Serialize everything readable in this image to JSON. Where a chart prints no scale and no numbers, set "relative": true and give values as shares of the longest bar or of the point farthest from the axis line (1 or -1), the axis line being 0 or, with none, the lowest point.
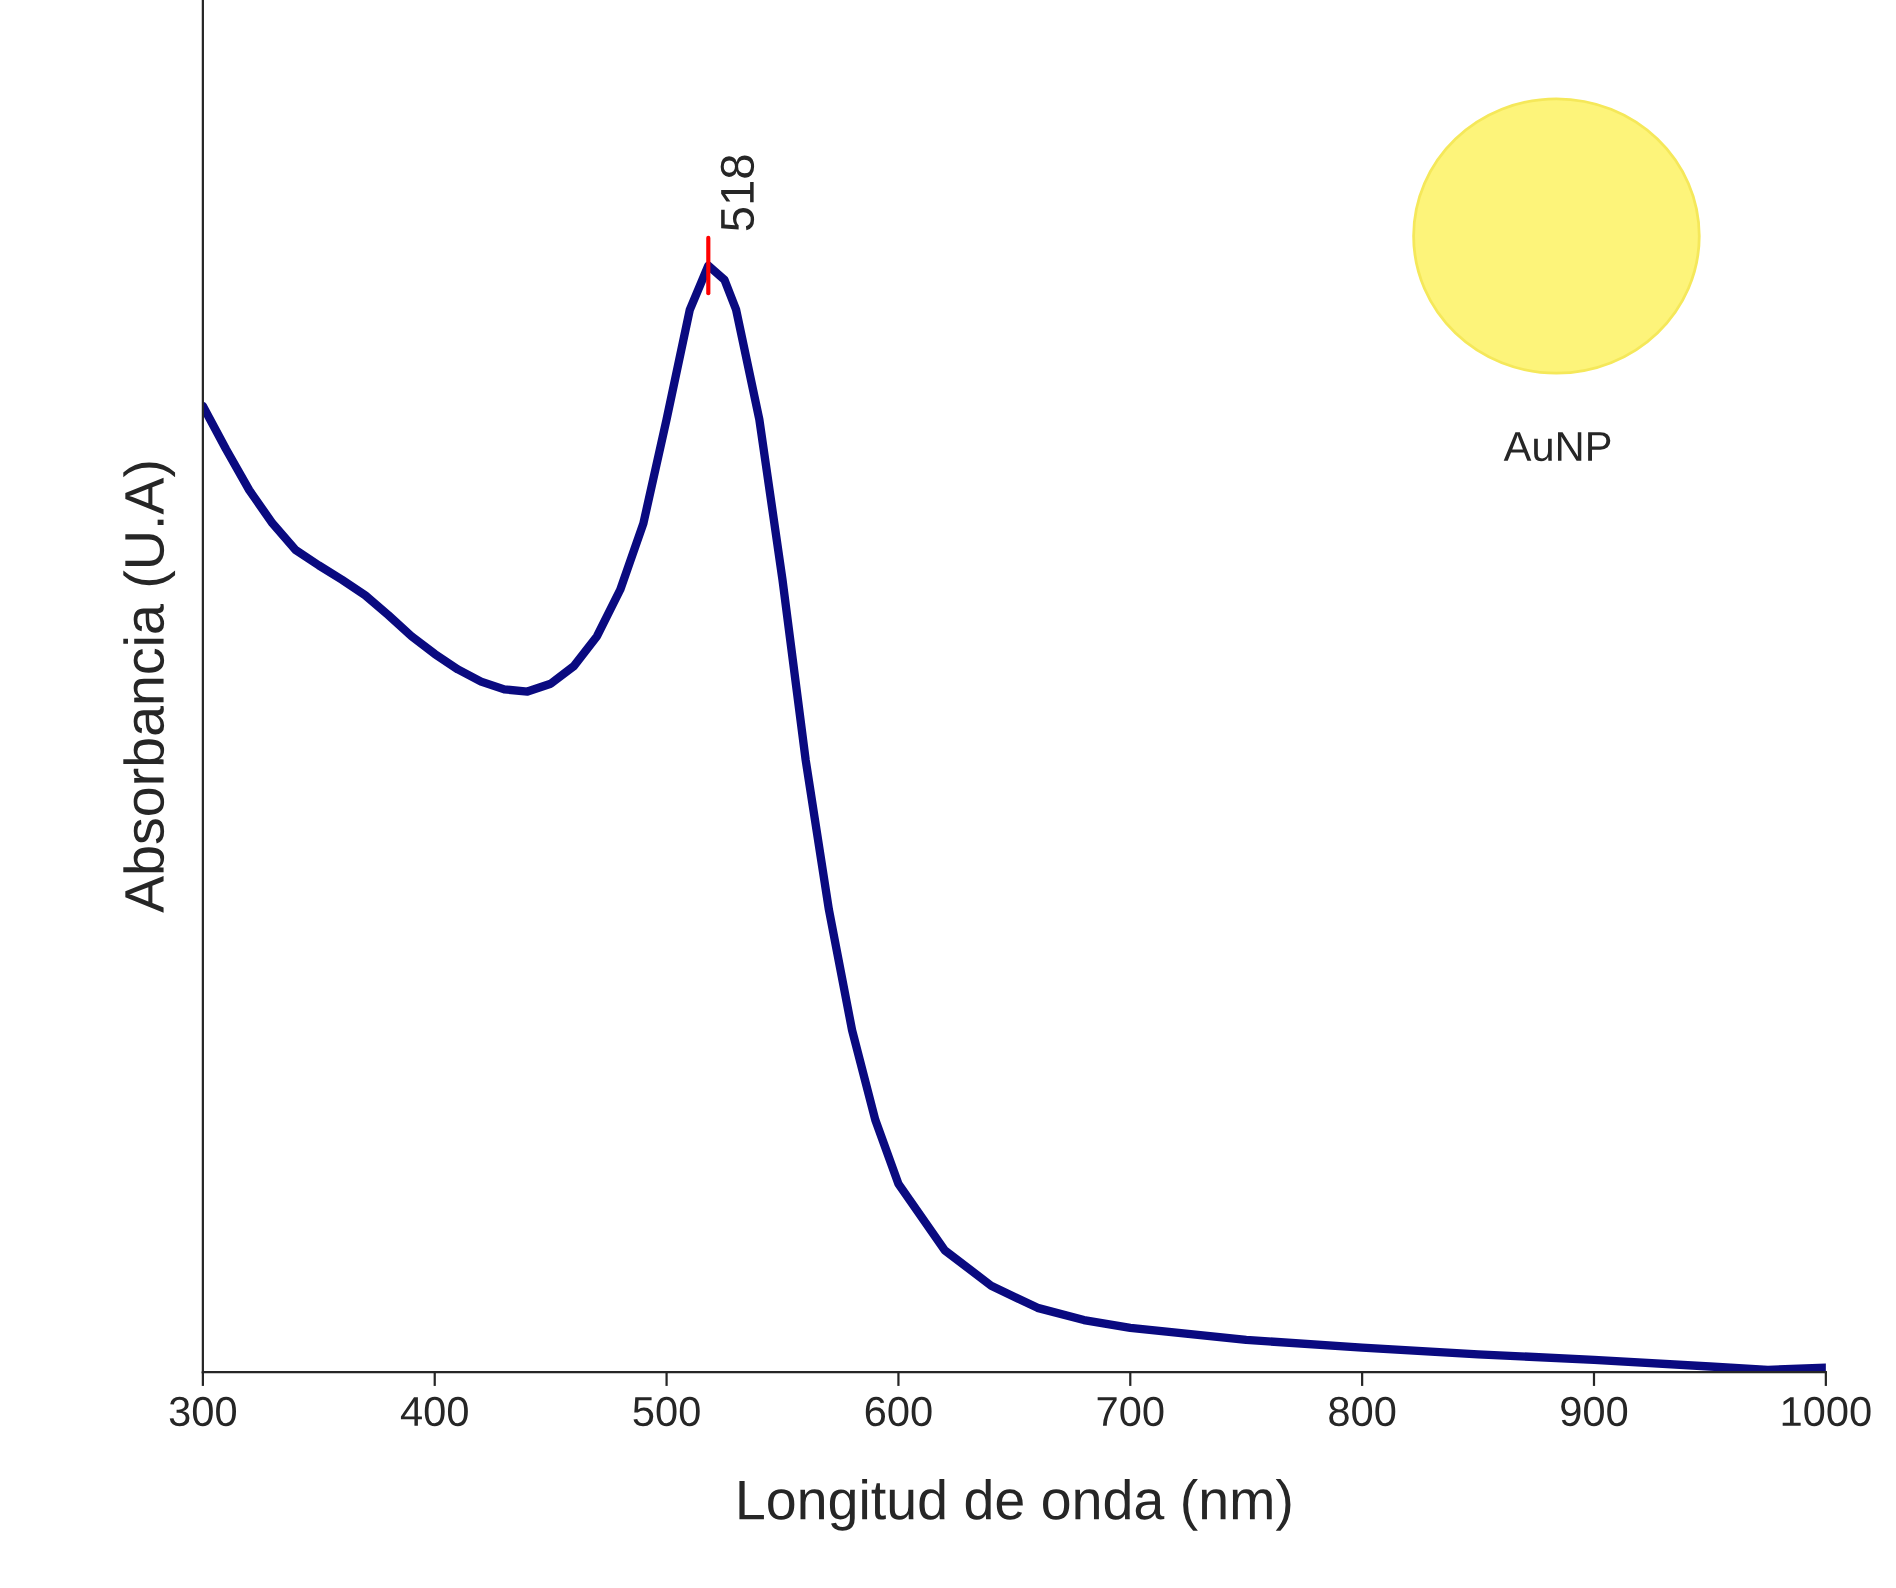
{
  "chart_data": {
    "type": "line",
    "xlabel": "Longitud de onda (nm)",
    "ylabel": "Absorbancia (U.A)",
    "relative": true,
    "xlim": [
      300,
      1000
    ],
    "xticks": [
      300,
      400,
      500,
      600,
      700,
      800,
      900,
      1000
    ],
    "x": [
      300,
      310,
      320,
      330,
      340,
      350,
      360,
      370,
      380,
      390,
      400,
      410,
      420,
      430,
      440,
      450,
      460,
      470,
      480,
      490,
      500,
      510,
      518,
      525,
      530,
      540,
      550,
      560,
      570,
      580,
      590,
      600,
      620,
      640,
      660,
      680,
      700,
      750,
      800,
      850,
      900,
      950,
      975,
      1000
    ],
    "series": [
      {
        "color": "#0a0a80",
        "values": [
          0.873,
          0.834,
          0.797,
          0.767,
          0.743,
          0.729,
          0.716,
          0.702,
          0.684,
          0.665,
          0.649,
          0.635,
          0.624,
          0.617,
          0.615,
          0.622,
          0.638,
          0.665,
          0.707,
          0.767,
          0.861,
          0.96,
          1.0,
          0.987,
          0.96,
          0.861,
          0.716,
          0.553,
          0.418,
          0.309,
          0.228,
          0.17,
          0.11,
          0.078,
          0.058,
          0.047,
          0.04,
          0.029,
          0.022,
          0.016,
          0.011,
          0.005,
          0.002,
          0.004
        ]
      }
    ],
    "annotations": [
      {
        "text": "518",
        "x": 518,
        "y": 1.0
      },
      "AuNP"
    ],
    "grid": false,
    "legend": false,
    "marker": "none",
    "line_style": "solid"
  }
}
